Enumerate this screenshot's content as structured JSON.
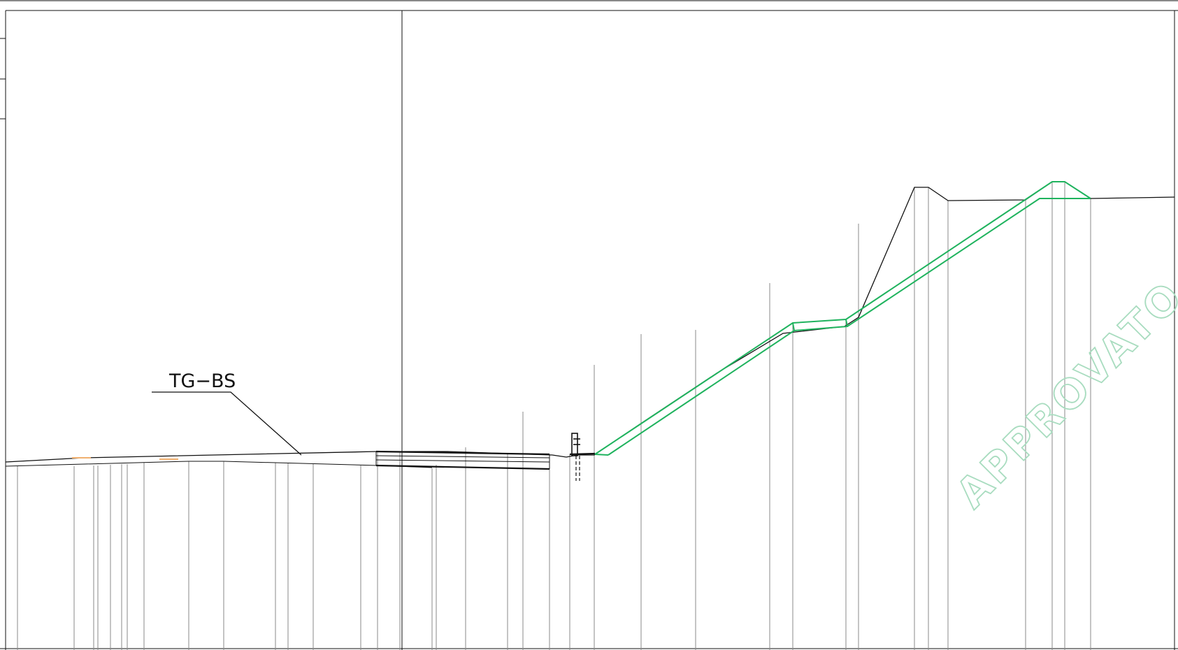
{
  "drawing": {
    "section_label": "TG−BS",
    "watermark": "APPROVATO SDP",
    "colors": {
      "linework": "#111111",
      "station_lines": "#8a8a8a",
      "design_profile": "#1fb35e",
      "watermark": "#a8dcbf",
      "marker": "#f0b070"
    }
  }
}
